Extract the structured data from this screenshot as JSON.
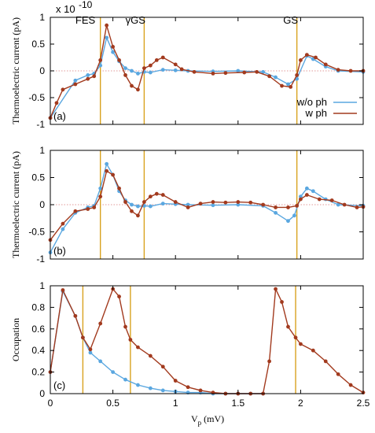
{
  "chart_data": [
    {
      "type": "line",
      "panel_label": "(a)",
      "ylabel": "Thermoelectric current (pA)",
      "exponent_label": "x 10",
      "exponent_power": "-10",
      "xlim": [
        0,
        2.5
      ],
      "ylim": [
        -1,
        1
      ],
      "yticks": [
        -1,
        -0.5,
        0,
        0.5,
        1
      ],
      "vlines": [
        0.4,
        0.75,
        1.97
      ],
      "annotations": [
        {
          "text": "FES",
          "x": 0.28,
          "y": 0.88
        },
        {
          "text": "γGS",
          "x": 0.68,
          "y": 0.88
        },
        {
          "text": "GS",
          "x": 1.92,
          "y": 0.88
        }
      ],
      "legend": {
        "position": "bottom-right",
        "entries": [
          "w/o ph",
          "w ph"
        ]
      },
      "series": [
        {
          "name": "w/o ph",
          "color": "#5aa7e0",
          "points": [
            [
              0,
              -0.88
            ],
            [
              0.2,
              -0.18
            ],
            [
              0.3,
              -0.08
            ],
            [
              0.35,
              -0.05
            ],
            [
              0.4,
              0.1
            ],
            [
              0.45,
              0.62
            ],
            [
              0.5,
              0.35
            ],
            [
              0.55,
              0.18
            ],
            [
              0.6,
              0.05
            ],
            [
              0.65,
              0.0
            ],
            [
              0.7,
              -0.05
            ],
            [
              0.75,
              -0.02
            ],
            [
              0.8,
              -0.03
            ],
            [
              0.9,
              0.02
            ],
            [
              1.0,
              0.01
            ],
            [
              1.1,
              0.0
            ],
            [
              1.3,
              -0.01
            ],
            [
              1.5,
              0.0
            ],
            [
              1.7,
              -0.02
            ],
            [
              1.8,
              -0.12
            ],
            [
              1.9,
              -0.25
            ],
            [
              1.97,
              -0.15
            ],
            [
              2.05,
              0.28
            ],
            [
              2.1,
              0.22
            ],
            [
              2.2,
              0.08
            ],
            [
              2.3,
              0.0
            ],
            [
              2.5,
              -0.02
            ]
          ]
        },
        {
          "name": "w ph",
          "color": "#a23a1e",
          "points": [
            [
              0,
              -0.88
            ],
            [
              0.05,
              -0.6
            ],
            [
              0.1,
              -0.35
            ],
            [
              0.2,
              -0.25
            ],
            [
              0.3,
              -0.15
            ],
            [
              0.35,
              -0.1
            ],
            [
              0.4,
              0.2
            ],
            [
              0.45,
              0.85
            ],
            [
              0.5,
              0.45
            ],
            [
              0.55,
              0.2
            ],
            [
              0.6,
              -0.08
            ],
            [
              0.65,
              -0.28
            ],
            [
              0.7,
              -0.35
            ],
            [
              0.75,
              0.05
            ],
            [
              0.8,
              0.1
            ],
            [
              0.85,
              0.2
            ],
            [
              0.9,
              0.25
            ],
            [
              1.0,
              0.12
            ],
            [
              1.05,
              0.03
            ],
            [
              1.15,
              -0.02
            ],
            [
              1.3,
              -0.05
            ],
            [
              1.4,
              -0.04
            ],
            [
              1.55,
              -0.03
            ],
            [
              1.65,
              -0.02
            ],
            [
              1.75,
              -0.1
            ],
            [
              1.85,
              -0.28
            ],
            [
              1.92,
              -0.3
            ],
            [
              1.97,
              -0.08
            ],
            [
              2.0,
              0.2
            ],
            [
              2.05,
              0.3
            ],
            [
              2.12,
              0.25
            ],
            [
              2.2,
              0.12
            ],
            [
              2.3,
              0.02
            ],
            [
              2.4,
              0.0
            ],
            [
              2.5,
              0.0
            ]
          ]
        }
      ]
    },
    {
      "type": "line",
      "panel_label": "(b)",
      "ylabel": "Thermoelectric current (pA)",
      "xlim": [
        0,
        2.5
      ],
      "ylim": [
        -1,
        1
      ],
      "yticks": [
        -1,
        -0.5,
        0,
        0.5,
        1
      ],
      "vlines": [
        0.4,
        0.75,
        1.97
      ],
      "series": [
        {
          "name": "w/o ph",
          "color": "#5aa7e0",
          "points": [
            [
              0,
              -0.88
            ],
            [
              0.1,
              -0.45
            ],
            [
              0.2,
              -0.15
            ],
            [
              0.3,
              -0.05
            ],
            [
              0.35,
              -0.02
            ],
            [
              0.4,
              0.3
            ],
            [
              0.45,
              0.75
            ],
            [
              0.5,
              0.55
            ],
            [
              0.55,
              0.25
            ],
            [
              0.6,
              0.08
            ],
            [
              0.65,
              0.0
            ],
            [
              0.7,
              -0.03
            ],
            [
              0.75,
              -0.02
            ],
            [
              0.8,
              -0.03
            ],
            [
              0.9,
              0.02
            ],
            [
              1.0,
              0.01
            ],
            [
              1.1,
              0.0
            ],
            [
              1.3,
              -0.01
            ],
            [
              1.5,
              0.0
            ],
            [
              1.7,
              -0.02
            ],
            [
              1.8,
              -0.15
            ],
            [
              1.9,
              -0.3
            ],
            [
              1.95,
              -0.2
            ],
            [
              2.0,
              0.15
            ],
            [
              2.05,
              0.3
            ],
            [
              2.1,
              0.25
            ],
            [
              2.2,
              0.1
            ],
            [
              2.3,
              0.0
            ],
            [
              2.5,
              -0.02
            ]
          ]
        },
        {
          "name": "w ph",
          "color": "#a23a1e",
          "points": [
            [
              0,
              -0.65
            ],
            [
              0.1,
              -0.35
            ],
            [
              0.2,
              -0.12
            ],
            [
              0.3,
              -0.08
            ],
            [
              0.35,
              -0.05
            ],
            [
              0.4,
              0.15
            ],
            [
              0.45,
              0.62
            ],
            [
              0.5,
              0.55
            ],
            [
              0.55,
              0.3
            ],
            [
              0.6,
              0.05
            ],
            [
              0.65,
              -0.12
            ],
            [
              0.7,
              -0.2
            ],
            [
              0.75,
              0.05
            ],
            [
              0.8,
              0.15
            ],
            [
              0.85,
              0.2
            ],
            [
              0.9,
              0.18
            ],
            [
              1.0,
              0.05
            ],
            [
              1.1,
              -0.05
            ],
            [
              1.2,
              0.02
            ],
            [
              1.3,
              0.05
            ],
            [
              1.4,
              0.04
            ],
            [
              1.5,
              0.05
            ],
            [
              1.6,
              0.04
            ],
            [
              1.7,
              0.0
            ],
            [
              1.8,
              -0.05
            ],
            [
              1.9,
              -0.05
            ],
            [
              1.97,
              -0.02
            ],
            [
              2.0,
              0.1
            ],
            [
              2.05,
              0.18
            ],
            [
              2.15,
              0.1
            ],
            [
              2.25,
              0.08
            ],
            [
              2.35,
              0.0
            ],
            [
              2.45,
              -0.05
            ],
            [
              2.5,
              -0.04
            ]
          ]
        }
      ]
    },
    {
      "type": "line",
      "panel_label": "(c)",
      "ylabel": "Occupation",
      "xlabel_main": "V",
      "xlabel_sub": "p",
      "xlabel_unit": " (mV)",
      "xlim": [
        0,
        2.5
      ],
      "ylim": [
        0,
        1
      ],
      "xticks": [
        0,
        0.5,
        1,
        1.5,
        2,
        2.5
      ],
      "yticks": [
        0,
        0.2,
        0.4,
        0.6,
        0.8,
        1
      ],
      "vlines": [
        0.26,
        0.64,
        1.96
      ],
      "series": [
        {
          "name": "w/o ph",
          "color": "#5aa7e0",
          "points": [
            [
              0,
              0.2
            ],
            [
              0.1,
              0.95
            ],
            [
              0.2,
              0.72
            ],
            [
              0.26,
              0.52
            ],
            [
              0.32,
              0.38
            ],
            [
              0.4,
              0.3
            ],
            [
              0.5,
              0.2
            ],
            [
              0.6,
              0.13
            ],
            [
              0.7,
              0.08
            ],
            [
              0.8,
              0.05
            ],
            [
              0.9,
              0.03
            ],
            [
              1.0,
              0.02
            ],
            [
              1.1,
              0.01
            ],
            [
              1.2,
              0.01
            ],
            [
              1.3,
              0.0
            ],
            [
              1.4,
              0.0
            ],
            [
              1.5,
              0.0
            ],
            [
              1.6,
              0.0
            ],
            [
              1.7,
              0.0
            ]
          ]
        },
        {
          "name": "w ph",
          "color": "#a23a1e",
          "points": [
            [
              0,
              0.2
            ],
            [
              0.1,
              0.96
            ],
            [
              0.2,
              0.72
            ],
            [
              0.26,
              0.52
            ],
            [
              0.32,
              0.41
            ],
            [
              0.4,
              0.65
            ],
            [
              0.5,
              0.97
            ],
            [
              0.55,
              0.9
            ],
            [
              0.6,
              0.62
            ],
            [
              0.64,
              0.5
            ],
            [
              0.7,
              0.43
            ],
            [
              0.8,
              0.35
            ],
            [
              0.9,
              0.25
            ],
            [
              1.0,
              0.12
            ],
            [
              1.1,
              0.06
            ],
            [
              1.2,
              0.03
            ],
            [
              1.3,
              0.01
            ],
            [
              1.4,
              0.0
            ],
            [
              1.5,
              0.0
            ],
            [
              1.6,
              0.0
            ],
            [
              1.7,
              0.0
            ],
            [
              1.75,
              0.3
            ],
            [
              1.8,
              0.97
            ],
            [
              1.85,
              0.85
            ],
            [
              1.9,
              0.62
            ],
            [
              1.96,
              0.52
            ],
            [
              2.0,
              0.46
            ],
            [
              2.1,
              0.4
            ],
            [
              2.2,
              0.3
            ],
            [
              2.3,
              0.18
            ],
            [
              2.4,
              0.08
            ],
            [
              2.5,
              0.01
            ]
          ]
        }
      ]
    }
  ],
  "colors": {
    "vline": "#d9a21f",
    "zero_line": "#d87878",
    "axis": "#000000"
  }
}
